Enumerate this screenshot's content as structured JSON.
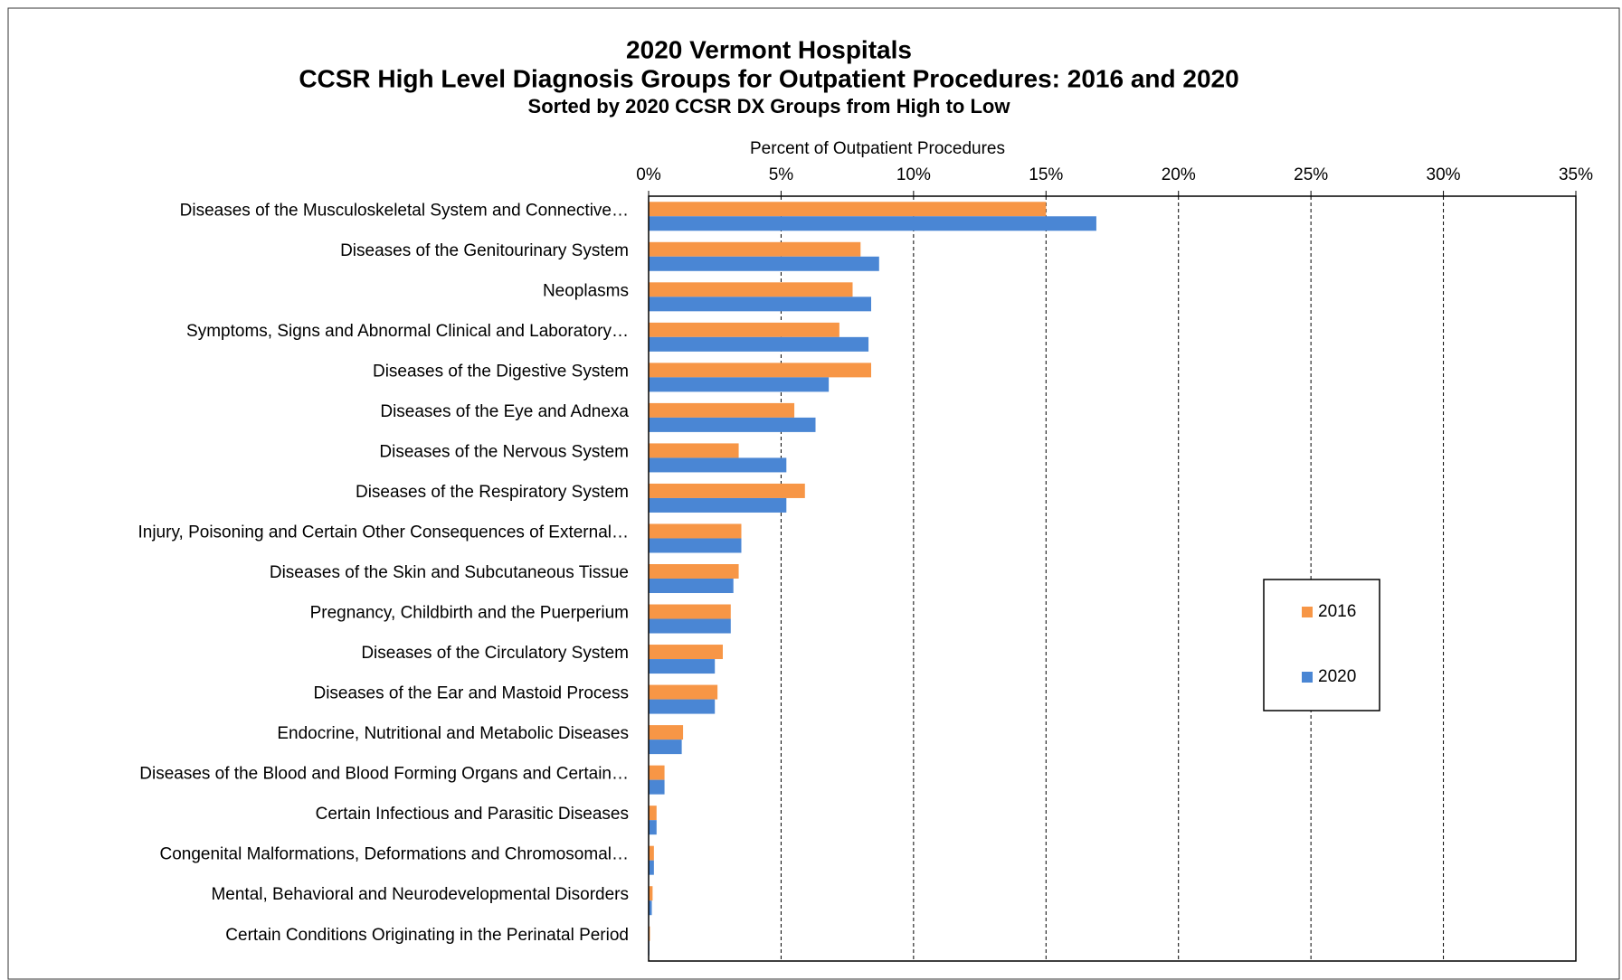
{
  "chart_data": {
    "type": "bar",
    "orientation": "horizontal",
    "title": "2020 Vermont Hospitals",
    "subtitle": "CCSR High Level Diagnosis Groups for Outpatient Procedures: 2016 and 2020",
    "note": "Sorted by 2020 CCSR DX Groups from High to Low",
    "x_label": "Percent of Outpatient Procedures",
    "categories": [
      "Diseases of the Musculoskeletal System and Connective…",
      "Diseases of the Genitourinary System",
      "Neoplasms",
      "Symptoms, Signs and Abnormal Clinical and Laboratory…",
      "Diseases of the Digestive System",
      "Diseases of the Eye and Adnexa",
      "Diseases of the Nervous System",
      "Diseases of the Respiratory System",
      "Injury, Poisoning and Certain Other Consequences of External…",
      "Diseases of the Skin and Subcutaneous Tissue",
      "Pregnancy, Childbirth and the Puerperium",
      "Diseases of the Circulatory System",
      "Diseases of the Ear and Mastoid Process",
      "Endocrine, Nutritional and Metabolic Diseases",
      "Diseases of the Blood and Blood Forming Organs and Certain…",
      "Certain Infectious and Parasitic Diseases",
      "Congenital Malformations, Deformations and Chromosomal…",
      "Mental, Behavioral and Neurodevelopmental Disorders",
      "Certain Conditions Originating in the Perinatal Period"
    ],
    "series": [
      {
        "name": "2016",
        "color": "#f79646",
        "values": [
          15.0,
          8.0,
          7.7,
          7.2,
          8.4,
          5.5,
          3.4,
          5.9,
          3.5,
          3.4,
          3.1,
          2.8,
          2.6,
          1.3,
          0.6,
          0.3,
          0.2,
          0.15,
          0.05
        ]
      },
      {
        "name": "2020",
        "color": "#4a86d4",
        "values": [
          16.9,
          8.7,
          8.4,
          8.3,
          6.8,
          6.3,
          5.2,
          5.2,
          3.5,
          3.2,
          3.1,
          2.5,
          2.5,
          1.25,
          0.6,
          0.3,
          0.2,
          0.12,
          0.03
        ]
      }
    ],
    "xlim": [
      0,
      35
    ],
    "xticks": [
      {
        "value": 0,
        "label": "0%"
      },
      {
        "value": 5,
        "label": "5%"
      },
      {
        "value": 10,
        "label": "10%"
      },
      {
        "value": 15,
        "label": "15%"
      },
      {
        "value": 20,
        "label": "20%"
      },
      {
        "value": 25,
        "label": "25%"
      },
      {
        "value": 30,
        "label": "30%"
      },
      {
        "value": 35,
        "label": "35%"
      }
    ],
    "grid": true,
    "legend": "right"
  }
}
